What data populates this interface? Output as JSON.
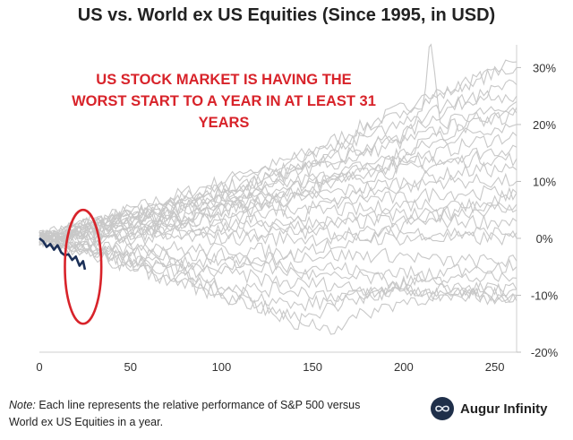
{
  "chart_data": {
    "type": "line",
    "title": "US vs. World ex US Equities (Since 1995, in USD)",
    "xlabel": "",
    "ylabel": "",
    "xlim": [
      0,
      262
    ],
    "ylim": [
      -20,
      34
    ],
    "x_ticks": [
      0,
      50,
      100,
      150,
      200,
      250
    ],
    "x_tick_labels": [
      "0",
      "50",
      "100",
      "150",
      "200",
      "250"
    ],
    "y_ticks": [
      30,
      20,
      10,
      0,
      -10,
      -20
    ],
    "y_tick_labels": [
      "30%",
      "20%",
      "10%",
      "0%",
      "-10%",
      "-20%"
    ],
    "y_axis_side": "right",
    "grid": false,
    "annotation": {
      "lines": [
        "US STOCK MARKET IS HAVING THE",
        "WORST START TO A YEAR IN AT LEAST 31",
        "YEARS"
      ],
      "color": "#d8232a"
    },
    "highlight_ellipse": {
      "x_center": 24,
      "y_center": -5,
      "x_radius": 10,
      "y_radius": 10,
      "color": "#d8232a"
    },
    "background_series_color": "#c8c8c8",
    "highlight_series_color": "#1b2f57",
    "background_series": [
      {
        "x": [
          0,
          20,
          40,
          60,
          80,
          100,
          120,
          140,
          160,
          180,
          200,
          220,
          240,
          262
        ],
        "values": [
          0,
          2,
          4,
          6,
          8,
          10,
          12,
          14,
          17,
          20,
          23,
          25,
          28,
          30
        ]
      },
      {
        "x": [
          0,
          20,
          40,
          60,
          80,
          100,
          120,
          140,
          160,
          180,
          200,
          220,
          240,
          262
        ],
        "values": [
          0,
          1,
          3,
          4,
          6,
          8,
          9,
          11,
          14,
          16,
          18,
          22,
          25,
          27
        ]
      },
      {
        "x": [
          0,
          20,
          40,
          60,
          80,
          100,
          120,
          140,
          160,
          180,
          200,
          220,
          240,
          262
        ],
        "values": [
          0,
          2,
          3,
          5,
          7,
          9,
          10,
          12,
          13,
          15,
          17,
          19,
          21,
          23
        ]
      },
      {
        "x": [
          0,
          20,
          40,
          60,
          80,
          100,
          120,
          140,
          160,
          180,
          200,
          220,
          240,
          262
        ],
        "values": [
          0,
          1,
          2,
          4,
          5,
          7,
          8,
          10,
          11,
          13,
          15,
          17,
          19,
          20
        ]
      },
      {
        "x": [
          0,
          20,
          40,
          60,
          80,
          100,
          120,
          140,
          160,
          180,
          200,
          220,
          240,
          262
        ],
        "values": [
          0,
          1,
          3,
          2,
          4,
          6,
          7,
          9,
          11,
          12,
          14,
          15,
          17,
          18
        ]
      },
      {
        "x": [
          0,
          20,
          40,
          60,
          80,
          100,
          120,
          140,
          160,
          180,
          200,
          220,
          240,
          262
        ],
        "values": [
          0,
          2,
          4,
          5,
          6,
          7,
          8,
          9,
          10,
          12,
          13,
          14,
          15,
          16
        ]
      },
      {
        "x": [
          0,
          20,
          40,
          60,
          80,
          100,
          120,
          140,
          160,
          180,
          200,
          220,
          240,
          262
        ],
        "values": [
          0,
          1,
          2,
          3,
          5,
          6,
          7,
          8,
          10,
          11,
          12,
          13,
          14,
          14
        ]
      },
      {
        "x": [
          0,
          20,
          40,
          60,
          80,
          100,
          120,
          140,
          160,
          180,
          200,
          220,
          240,
          262
        ],
        "values": [
          0,
          1,
          2,
          3,
          4,
          5,
          6,
          7,
          8,
          9,
          10,
          11,
          12,
          12
        ]
      },
      {
        "x": [
          0,
          20,
          40,
          60,
          80,
          100,
          120,
          140,
          160,
          180,
          200,
          220,
          240,
          262
        ],
        "values": [
          0,
          2,
          3,
          4,
          4,
          5,
          6,
          7,
          7,
          8,
          9,
          10,
          10,
          10
        ]
      },
      {
        "x": [
          0,
          20,
          40,
          60,
          80,
          100,
          120,
          140,
          160,
          180,
          200,
          220,
          240,
          262
        ],
        "values": [
          0,
          1,
          2,
          3,
          3,
          4,
          5,
          5,
          6,
          7,
          7,
          8,
          8,
          8
        ]
      },
      {
        "x": [
          0,
          20,
          40,
          60,
          80,
          100,
          120,
          140,
          160,
          180,
          200,
          220,
          240,
          262
        ],
        "values": [
          0,
          1,
          1,
          2,
          3,
          3,
          4,
          4,
          5,
          5,
          6,
          6,
          6,
          6
        ]
      },
      {
        "x": [
          0,
          20,
          40,
          60,
          80,
          100,
          120,
          140,
          160,
          180,
          200,
          220,
          240,
          262
        ],
        "values": [
          0,
          1,
          1,
          1,
          2,
          2,
          3,
          3,
          3,
          4,
          4,
          4,
          5,
          5
        ]
      },
      {
        "x": [
          0,
          20,
          40,
          60,
          80,
          100,
          120,
          140,
          160,
          180,
          200,
          220,
          240,
          262
        ],
        "values": [
          0,
          0,
          1,
          1,
          1,
          2,
          2,
          2,
          2,
          3,
          3,
          3,
          3,
          3
        ]
      },
      {
        "x": [
          0,
          20,
          40,
          60,
          80,
          100,
          120,
          140,
          160,
          180,
          200,
          220,
          240,
          262
        ],
        "values": [
          0,
          0,
          0,
          1,
          1,
          1,
          1,
          1,
          1,
          1,
          1,
          1,
          1,
          1
        ]
      },
      {
        "x": [
          0,
          20,
          40,
          60,
          80,
          100,
          120,
          140,
          160,
          180,
          200,
          220,
          240,
          262
        ],
        "values": [
          0,
          0,
          0,
          0,
          0,
          0,
          0,
          0,
          0,
          0,
          0,
          0,
          0,
          0
        ]
      },
      {
        "x": [
          0,
          20,
          40,
          60,
          80,
          100,
          120,
          140,
          160,
          180,
          200,
          220,
          240,
          262
        ],
        "values": [
          0,
          -1,
          -1,
          -1,
          -2,
          -2,
          -2,
          -3,
          -3,
          -3,
          -3,
          -4,
          -4,
          -4
        ]
      },
      {
        "x": [
          0,
          20,
          40,
          60,
          80,
          100,
          120,
          140,
          160,
          180,
          200,
          220,
          240,
          262
        ],
        "values": [
          0,
          -1,
          -2,
          -2,
          -3,
          -3,
          -4,
          -5,
          -5,
          -6,
          -6,
          -7,
          -7,
          -7
        ]
      },
      {
        "x": [
          0,
          20,
          40,
          60,
          80,
          100,
          120,
          140,
          160,
          180,
          200,
          220,
          240,
          262
        ],
        "values": [
          0,
          -1,
          -2,
          -3,
          -4,
          -4,
          -5,
          -6,
          -7,
          -7,
          -8,
          -8,
          -9,
          -9
        ]
      },
      {
        "x": [
          0,
          20,
          40,
          60,
          80,
          100,
          120,
          140,
          160,
          180,
          200,
          220,
          240,
          262
        ],
        "values": [
          0,
          -2,
          -3,
          -4,
          -5,
          -6,
          -7,
          -8,
          -8,
          -9,
          -9,
          -10,
          -10,
          -10
        ]
      },
      {
        "x": [
          0,
          20,
          40,
          60,
          80,
          100,
          120,
          140,
          160,
          180,
          200,
          220,
          240,
          262
        ],
        "values": [
          0,
          -2,
          -4,
          -5,
          -6,
          -8,
          -9,
          -9,
          -10,
          -10,
          -9,
          -10,
          -9,
          -9
        ]
      },
      {
        "x": [
          0,
          20,
          40,
          60,
          80,
          100,
          120,
          140,
          160,
          180,
          200,
          220,
          240,
          262
        ],
        "values": [
          0,
          -1,
          -3,
          -5,
          -7,
          -9,
          -10,
          -12,
          -11,
          -10,
          -9,
          -9,
          -10,
          -11
        ]
      },
      {
        "x": [
          0,
          20,
          40,
          60,
          80,
          100,
          120,
          140,
          160,
          180,
          200,
          220,
          240,
          262
        ],
        "values": [
          0,
          -2,
          -3,
          -6,
          -8,
          -10,
          -12,
          -14,
          -16,
          -13,
          -11,
          -10,
          -10,
          -10
        ]
      },
      {
        "x": [
          0,
          20,
          40,
          60,
          80,
          100,
          120,
          140,
          160,
          180,
          200,
          220,
          240,
          262
        ],
        "values": [
          0,
          1,
          3,
          5,
          7,
          9,
          12,
          14,
          16,
          19,
          22,
          26,
          28,
          31
        ]
      },
      {
        "x": [
          0,
          20,
          40,
          60,
          80,
          100,
          120,
          140,
          160,
          180,
          200,
          220,
          240,
          262
        ],
        "values": [
          0,
          1,
          2,
          4,
          6,
          8,
          10,
          13,
          15,
          18,
          20,
          23,
          25,
          25
        ]
      },
      {
        "x": [
          0,
          20,
          40,
          60,
          80,
          100,
          120,
          140,
          160,
          180,
          200,
          220,
          240,
          262
        ],
        "values": [
          0,
          -1,
          0,
          1,
          3,
          5,
          6,
          8,
          10,
          12,
          15,
          18,
          20,
          22
        ]
      },
      {
        "x": [
          0,
          20,
          40,
          60,
          80,
          100,
          120,
          140,
          160,
          180,
          200,
          210,
          215,
          220,
          240,
          262
        ],
        "values": [
          0,
          2,
          3,
          5,
          7,
          8,
          10,
          12,
          14,
          16,
          18,
          22,
          35,
          20,
          22,
          24
        ]
      },
      {
        "x": [
          0,
          20,
          40,
          60,
          80,
          100,
          120,
          140,
          160,
          180,
          200,
          220,
          240,
          262
        ],
        "values": [
          0,
          -2,
          -4,
          -6,
          -8,
          -10,
          -12,
          -15,
          -12,
          -10,
          -8,
          -6,
          -5,
          -5
        ]
      },
      {
        "x": [
          0,
          20,
          40,
          60,
          80,
          100,
          120,
          140,
          160,
          180,
          200,
          220,
          240,
          262
        ],
        "values": [
          0,
          -1,
          -3,
          -4,
          -6,
          -5,
          -4,
          -3,
          -1,
          0,
          2,
          4,
          6,
          8
        ]
      }
    ],
    "highlight_series": {
      "x": [
        0,
        2,
        4,
        6,
        8,
        10,
        12,
        14,
        16,
        18,
        20,
        22,
        24,
        25
      ],
      "values": [
        0,
        -0.5,
        -1.5,
        -1,
        -2,
        -1.2,
        -2.5,
        -3,
        -2.8,
        -3.8,
        -3.2,
        -4.8,
        -4,
        -5.5
      ]
    }
  },
  "note": {
    "label": "Note:",
    "text": " Each line represents the relative performance of S&P 500 versus World ex US Equities in a year."
  },
  "brand": {
    "name": "Augur Infinity",
    "logo_icon": "infinity-icon"
  }
}
